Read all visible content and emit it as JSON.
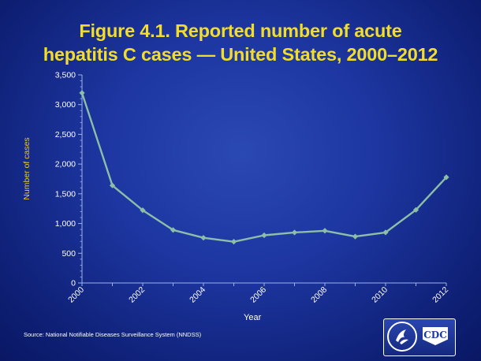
{
  "chart_data": {
    "type": "line",
    "title": "Figure 4.1. Reported number of acute",
    "title_line2": "hepatitis C cases — United States, 2000–2012",
    "xlabel": "Year",
    "ylabel": "Number of cases",
    "x": [
      2000,
      2001,
      2002,
      2003,
      2004,
      2005,
      2006,
      2007,
      2008,
      2009,
      2010,
      2011,
      2012
    ],
    "values": [
      3197,
      1640,
      1223,
      891,
      760,
      694,
      802,
      849,
      878,
      781,
      850,
      1229,
      1778
    ],
    "xlim": [
      2000,
      2012
    ],
    "ylim": [
      0,
      3500
    ],
    "x_ticks": [
      "2000",
      "2002",
      "2004",
      "2006",
      "2008",
      "2010",
      "2012"
    ],
    "y_ticks": [
      "0",
      "500",
      "1,000",
      "1,500",
      "2,000",
      "2,500",
      "3,000",
      "3,500"
    ],
    "grid": false,
    "line_color": "#8cbea8"
  },
  "source": "Source: National Notifiable Diseases Surveillance System (NNDSS)",
  "logo": {
    "cdc_text": "CDC",
    "hhs_icon": "hhs-eagle-seal-icon"
  }
}
